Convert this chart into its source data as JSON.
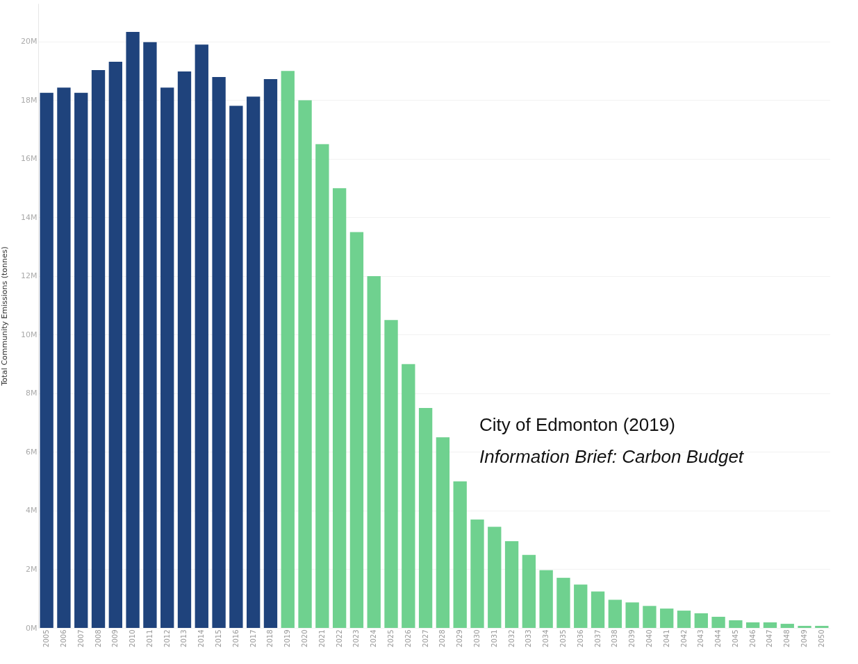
{
  "chart_data": {
    "type": "bar",
    "ylabel": "Total Community Emissions (tonnes)",
    "categories": [
      "2005",
      "2006",
      "2007",
      "2008",
      "2009",
      "2010",
      "2011",
      "2012",
      "2013",
      "2014",
      "2015",
      "2016",
      "2017",
      "2018",
      "2019",
      "2020",
      "2021",
      "2022",
      "2023",
      "2024",
      "2025",
      "2026",
      "2027",
      "2028",
      "2029",
      "2030",
      "2031",
      "2032",
      "2033",
      "2034",
      "2035",
      "2036",
      "2037",
      "2038",
      "2039",
      "2040",
      "2041",
      "2042",
      "2043",
      "2044",
      "2045",
      "2046",
      "2047",
      "2048",
      "2049",
      "2050"
    ],
    "values": [
      18250000,
      18430000,
      18250000,
      19030000,
      19310000,
      20330000,
      19980000,
      18430000,
      18980000,
      19900000,
      18790000,
      17810000,
      18120000,
      18720000,
      19000000,
      18000000,
      16500000,
      15000000,
      13500000,
      12000000,
      10500000,
      9000000,
      7500000,
      6500000,
      5000000,
      3700000,
      3450000,
      2960000,
      2490000,
      1970000,
      1710000,
      1480000,
      1240000,
      960000,
      870000,
      750000,
      660000,
      590000,
      500000,
      380000,
      260000,
      190000,
      190000,
      140000,
      70000,
      70000
    ],
    "colors": [
      "#1f437c",
      "#1f437c",
      "#1f437c",
      "#1f437c",
      "#1f437c",
      "#1f437c",
      "#1f437c",
      "#1f437c",
      "#1f437c",
      "#1f437c",
      "#1f437c",
      "#1f437c",
      "#1f437c",
      "#1f437c",
      "#6fd18f",
      "#6fd18f",
      "#6fd18f",
      "#6fd18f",
      "#6fd18f",
      "#6fd18f",
      "#6fd18f",
      "#6fd18f",
      "#6fd18f",
      "#6fd18f",
      "#6fd18f",
      "#6fd18f",
      "#6fd18f",
      "#6fd18f",
      "#6fd18f",
      "#6fd18f",
      "#6fd18f",
      "#6fd18f",
      "#6fd18f",
      "#6fd18f",
      "#6fd18f",
      "#6fd18f",
      "#6fd18f",
      "#6fd18f",
      "#6fd18f",
      "#6fd18f",
      "#6fd18f",
      "#6fd18f",
      "#6fd18f",
      "#6fd18f",
      "#6fd18f",
      "#6fd18f"
    ],
    "ylim": [
      0,
      21300000
    ],
    "yticks": [
      {
        "value": 0,
        "label": "0M"
      },
      {
        "value": 2000000,
        "label": "2M"
      },
      {
        "value": 4000000,
        "label": "4M"
      },
      {
        "value": 6000000,
        "label": "6M"
      },
      {
        "value": 8000000,
        "label": "8M"
      },
      {
        "value": 10000000,
        "label": "10M"
      },
      {
        "value": 12000000,
        "label": "12M"
      },
      {
        "value": 14000000,
        "label": "14M"
      },
      {
        "value": 16000000,
        "label": "16M"
      },
      {
        "value": 18000000,
        "label": "18M"
      },
      {
        "value": 20000000,
        "label": "20M"
      }
    ],
    "grid": "y",
    "annotations": [
      "City of Edmonton (2019)",
      "Information Brief: Carbon Budget"
    ]
  }
}
